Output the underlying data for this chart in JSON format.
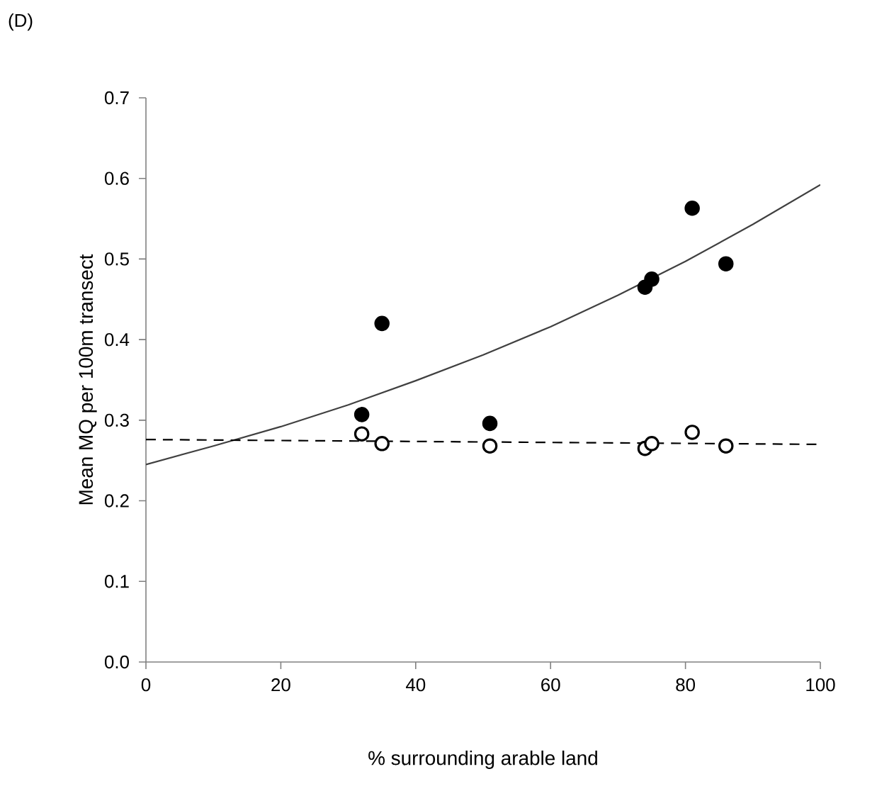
{
  "chart_data": {
    "type": "scatter",
    "xlabel": "% surrounding arable land",
    "ylabel": "Mean MQ per 100m transect",
    "annotations": [
      "(D)"
    ],
    "xlim": [
      0,
      100
    ],
    "xticks": [
      0,
      20,
      40,
      60,
      80,
      100
    ],
    "ylim": [
      0,
      0.7
    ],
    "yticks": [
      {
        "value": 0,
        "label": "0.0"
      },
      {
        "value": 0.1,
        "label": "0.1"
      },
      {
        "value": 0.2,
        "label": "0.2"
      },
      {
        "value": 0.3,
        "label": "0.3"
      },
      {
        "value": 0.4,
        "label": "0.4"
      },
      {
        "value": 0.5,
        "label": "0.5"
      },
      {
        "value": 0.6,
        "label": "0.6"
      },
      {
        "value": 0.7,
        "label": "0.7"
      }
    ],
    "grid": false,
    "series": [
      {
        "marker": "circle",
        "color": "#000000",
        "x": [
          32,
          35,
          51,
          74,
          75,
          81,
          86
        ],
        "values": [
          0.307,
          0.42,
          0.296,
          0.465,
          0.475,
          0.563,
          0.494
        ]
      },
      {
        "marker": "circle",
        "color": "#ffffff",
        "x": [
          32,
          35,
          51,
          74,
          75,
          81,
          86
        ],
        "values": [
          0.283,
          0.271,
          0.268,
          0.265,
          0.271,
          0.285,
          0.268
        ]
      },
      {
        "type": "line",
        "marker": "none",
        "line_style": "solid",
        "color": "#404040",
        "x": [
          0,
          10,
          20,
          30,
          40,
          50,
          60,
          70,
          80,
          90,
          100
        ],
        "values": [
          0.245,
          0.268,
          0.292,
          0.319,
          0.349,
          0.381,
          0.416,
          0.455,
          0.497,
          0.543,
          0.592
        ]
      },
      {
        "type": "line",
        "marker": "none",
        "line_style": "dashed",
        "color": "#000000",
        "x": [
          0,
          100
        ],
        "values": [
          0.276,
          0.27
        ]
      }
    ]
  }
}
